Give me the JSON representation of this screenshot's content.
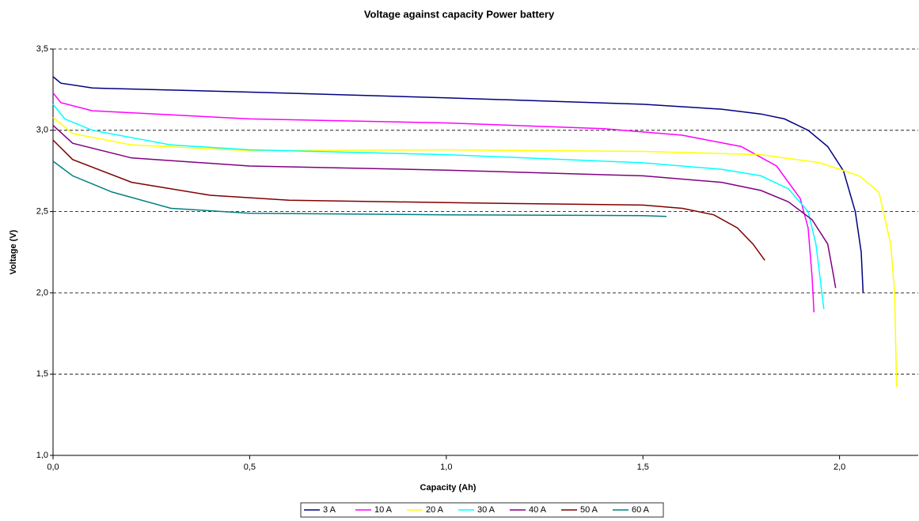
{
  "chart_data": {
    "type": "line",
    "title": "Voltage against capacity Power battery",
    "x_label": "Capacity (Ah)",
    "y_label": "Voltage (V)",
    "xlim": [
      0,
      2.2
    ],
    "xticks": [
      {
        "value": 0,
        "label": "0,0"
      },
      {
        "value": 0.5,
        "label": "0,5"
      },
      {
        "value": 1,
        "label": "1,0"
      },
      {
        "value": 1.5,
        "label": "1,5"
      },
      {
        "value": 2,
        "label": "2,0"
      }
    ],
    "ylim": [
      1,
      3.5
    ],
    "yticks": [
      {
        "value": 1,
        "label": "1,0"
      },
      {
        "value": 1.5,
        "label": "1,5"
      },
      {
        "value": 2,
        "label": "2,0"
      },
      {
        "value": 2.5,
        "label": "2,5"
      },
      {
        "value": 3,
        "label": "3,0"
      },
      {
        "value": 3.5,
        "label": "3,5"
      }
    ],
    "grid": true,
    "legend": "bottom",
    "series": [
      {
        "name": "3 A",
        "color": "#000080",
        "x": [
          0,
          0.02,
          0.1,
          0.5,
          1.0,
          1.5,
          1.7,
          1.8,
          1.86,
          1.92,
          1.97,
          2.01,
          2.04,
          2.055,
          2.06
        ],
        "values": [
          3.33,
          3.29,
          3.26,
          3.235,
          3.2,
          3.16,
          3.13,
          3.1,
          3.07,
          3.0,
          2.9,
          2.75,
          2.5,
          2.25,
          2.0
        ]
      },
      {
        "name": "10 A",
        "color": "#ff00ff",
        "x": [
          0,
          0.02,
          0.1,
          0.5,
          1.0,
          1.4,
          1.6,
          1.75,
          1.84,
          1.9,
          1.92,
          1.93,
          1.935
        ],
        "values": [
          3.23,
          3.17,
          3.12,
          3.07,
          3.045,
          3.01,
          2.97,
          2.9,
          2.78,
          2.58,
          2.4,
          2.1,
          1.88
        ]
      },
      {
        "name": "20 A",
        "color": "#ffff00",
        "x": [
          0,
          0.05,
          0.2,
          0.5,
          1.0,
          1.5,
          1.8,
          1.95,
          2.05,
          2.1,
          2.13,
          2.14,
          2.145
        ],
        "values": [
          3.08,
          2.98,
          2.91,
          2.875,
          2.88,
          2.87,
          2.85,
          2.8,
          2.72,
          2.62,
          2.3,
          2.0,
          1.42
        ]
      },
      {
        "name": "30 A",
        "color": "#00ffff",
        "x": [
          0,
          0.03,
          0.1,
          0.3,
          0.5,
          1.0,
          1.5,
          1.7,
          1.8,
          1.87,
          1.92,
          1.94,
          1.955,
          1.96
        ],
        "values": [
          3.16,
          3.07,
          3.0,
          2.91,
          2.88,
          2.85,
          2.8,
          2.76,
          2.72,
          2.64,
          2.5,
          2.3,
          2.0,
          1.9
        ]
      },
      {
        "name": "40 A",
        "color": "#800080",
        "x": [
          0,
          0.05,
          0.2,
          0.5,
          1.0,
          1.5,
          1.7,
          1.8,
          1.87,
          1.93,
          1.97,
          1.985,
          1.99
        ],
        "values": [
          3.03,
          2.92,
          2.83,
          2.78,
          2.755,
          2.72,
          2.68,
          2.63,
          2.56,
          2.45,
          2.3,
          2.1,
          2.03
        ]
      },
      {
        "name": "50 A",
        "color": "#800000",
        "x": [
          0,
          0.05,
          0.2,
          0.4,
          0.6,
          1.0,
          1.5,
          1.6,
          1.68,
          1.74,
          1.78,
          1.81
        ],
        "values": [
          2.94,
          2.82,
          2.68,
          2.6,
          2.57,
          2.555,
          2.54,
          2.52,
          2.48,
          2.4,
          2.3,
          2.2
        ]
      },
      {
        "name": "60 A",
        "color": "#008080",
        "x": [
          0,
          0.05,
          0.15,
          0.3,
          0.5,
          1.0,
          1.5,
          1.56
        ],
        "values": [
          2.81,
          2.72,
          2.62,
          2.52,
          2.49,
          2.48,
          2.475,
          2.47
        ]
      }
    ]
  }
}
